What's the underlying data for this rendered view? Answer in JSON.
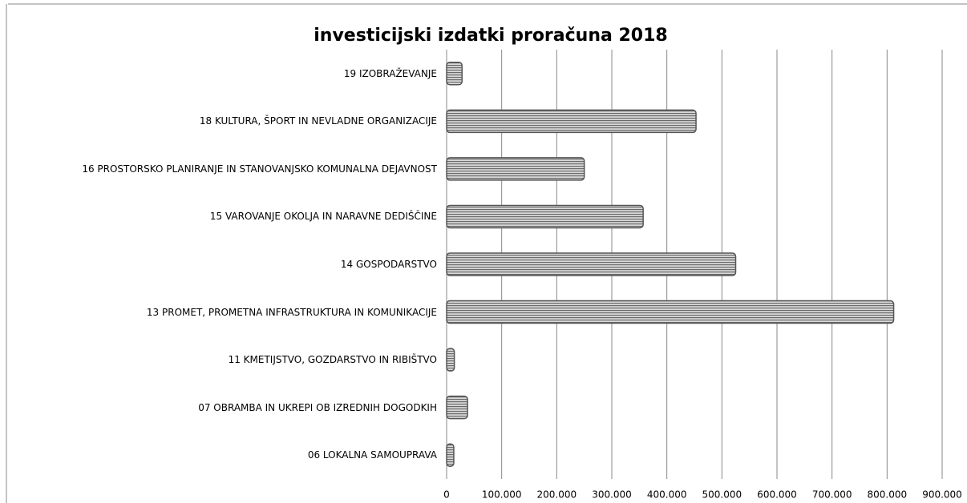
{
  "chart_data": {
    "type": "bar",
    "orientation": "horizontal",
    "title": "investicijski izdatki proračuna 2018",
    "categories": [
      "19 IZOBRAŽEVANJE",
      "18 KULTURA, ŠPORT IN NEVLADNE ORGANIZACIJE",
      "16 PROSTORSKO PLANIRANJE IN STANOVANJSKO KOMUNALNA DEJAVNOST",
      "15 VAROVANJE OKOLJA IN NARAVNE DEDIŠČINE",
      "14 GOSPODARSTVO",
      "13 PROMET, PROMETNA INFRASTRUKTURA IN KOMUNIKACIJE",
      "11 KMETIJSTVO, GOZDARSTVO IN RIBIŠTVO",
      "07 OBRAMBA IN UKREPI OB IZREDNIH DOGODKIH",
      "06 LOKALNA SAMOUPRAVA"
    ],
    "values": [
      28000,
      453000,
      250000,
      357000,
      525000,
      812000,
      14000,
      38000,
      13000
    ],
    "color": "#9a9a9a",
    "xlim": [
      0,
      900000
    ],
    "xticks": [
      0,
      {
        "value": 100000,
        "label": "100.000"
      },
      {
        "value": 200000,
        "label": "200.000"
      },
      {
        "value": 300000,
        "label": "300.000"
      },
      {
        "value": 400000,
        "label": "400.000"
      },
      {
        "value": 500000,
        "label": "500.000"
      },
      {
        "value": 600000,
        "label": "600.000"
      },
      {
        "value": 700000,
        "label": "700.000"
      },
      {
        "value": 800000,
        "label": "800.000"
      },
      {
        "value": 900000,
        "label": "900.000"
      }
    ],
    "grid": true
  }
}
